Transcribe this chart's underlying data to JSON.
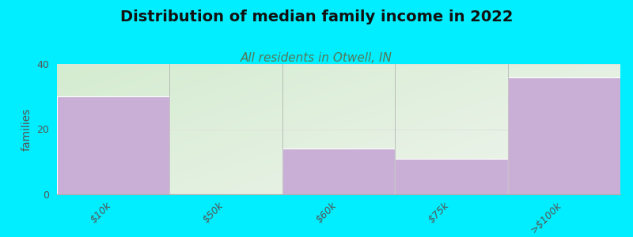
{
  "title": "Distribution of median family income in 2022",
  "subtitle": "All residents in Otwell, IN",
  "categories": [
    "$10k",
    "$50k",
    "$60k",
    "$75k",
    ">$100k"
  ],
  "values": [
    30,
    0,
    14,
    11,
    36
  ],
  "bar_color": "#c9aed6",
  "bar_edgecolor": "#ffffff",
  "ylabel": "families",
  "ylim": [
    0,
    40
  ],
  "yticks": [
    0,
    20,
    40
  ],
  "background_color": "#00eeff",
  "plot_bg_top_left": "#d4ecd0",
  "plot_bg_right": "#f0f4ee",
  "plot_bg_bottom": "#f8f8f4",
  "title_fontsize": 14,
  "subtitle_fontsize": 11,
  "subtitle_color": "#557755",
  "grid_color": "#e0e4dc",
  "tick_label_color": "#555555",
  "bar_width": 1.0,
  "title_color": "#111111"
}
